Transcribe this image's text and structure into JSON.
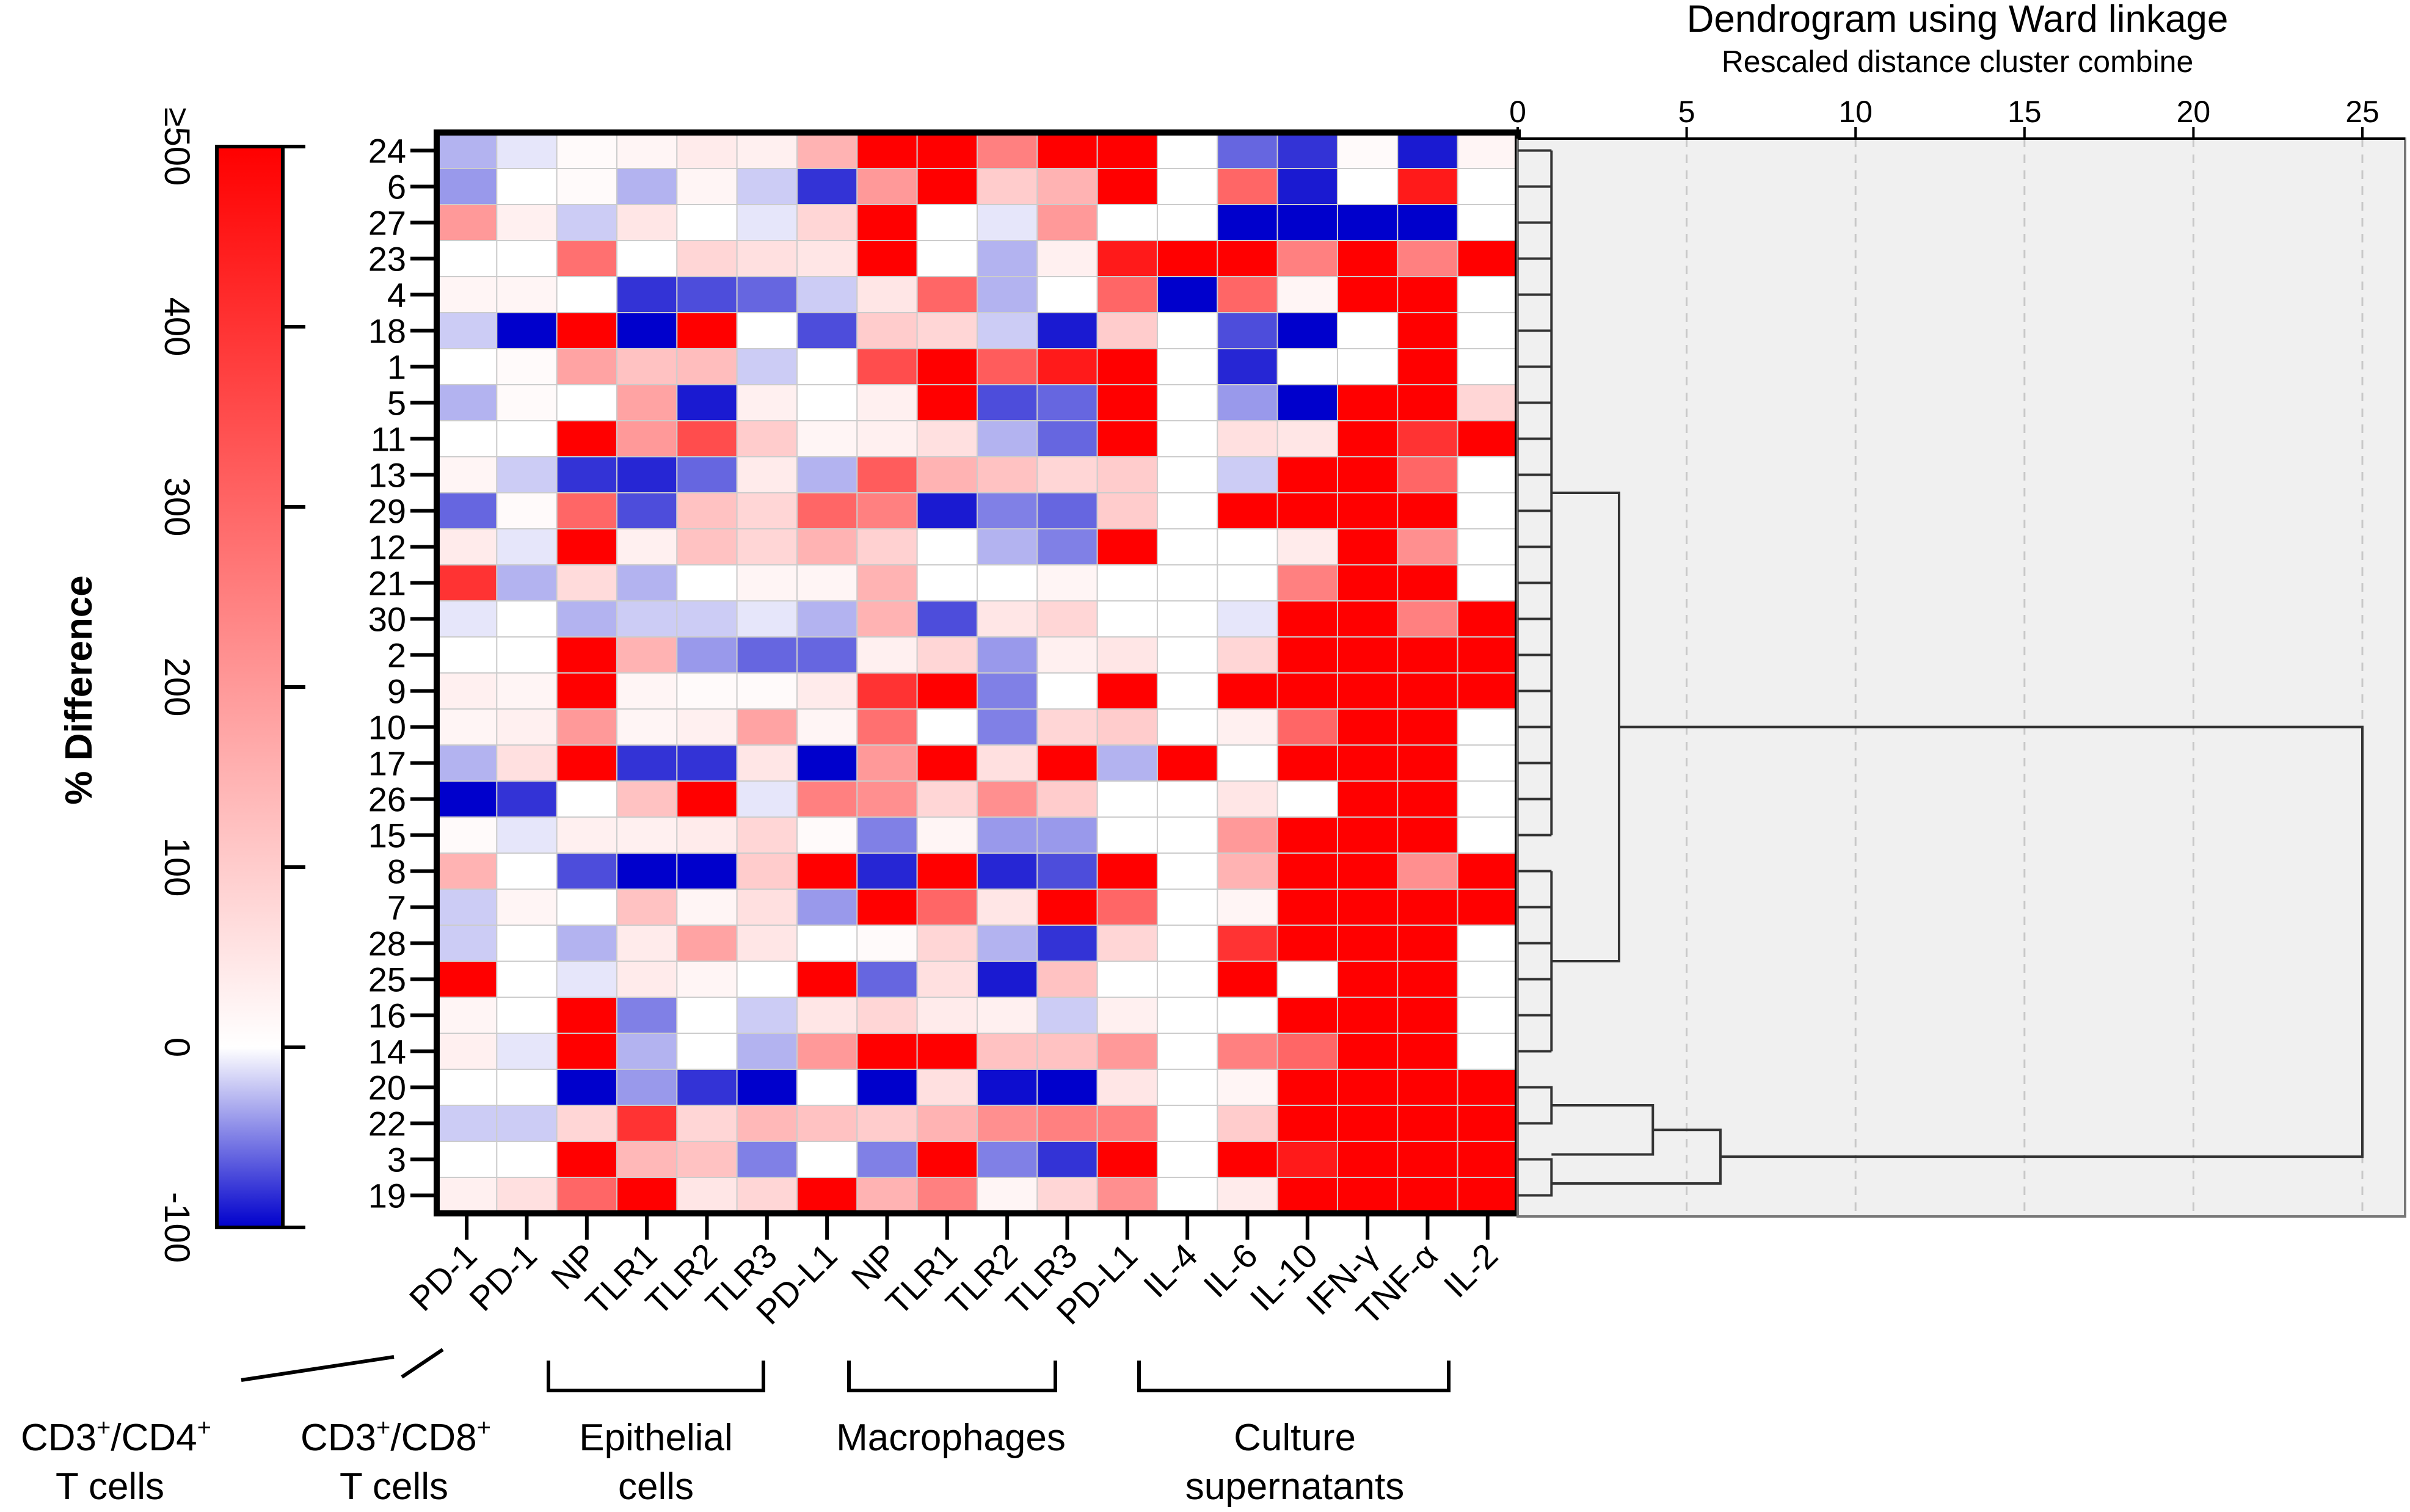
{
  "chart_data": [
    {
      "type": "heatmap",
      "title": "",
      "rows": [
        "24",
        "6",
        "27",
        "23",
        "4",
        "18",
        "1",
        "5",
        "11",
        "13",
        "29",
        "12",
        "21",
        "30",
        "2",
        "9",
        "10",
        "17",
        "26",
        "15",
        "8",
        "7",
        "28",
        "25",
        "16",
        "14",
        "20",
        "22",
        "3",
        "19"
      ],
      "columns": [
        "PD-1",
        "PD-1",
        "NP",
        "TLR1",
        "TLR2",
        "TLR3",
        "PD-L1",
        "NP",
        "TLR1",
        "TLR2",
        "TLR3",
        "PD-L1",
        "IL-4",
        "IL-6",
        "IL-10",
        "IFN-γ",
        "TNF-α",
        "IL-2"
      ],
      "groups": [
        {
          "label_line1": "CD3⁺/CD4⁺",
          "label_line2": "T cells",
          "columns": [
            0
          ]
        },
        {
          "label_line1": "CD3⁺/CD8⁺",
          "label_line2": "T cells",
          "columns": [
            1
          ]
        },
        {
          "label_line1": "Epithelial",
          "label_line2": "cells",
          "columns": [
            2,
            3,
            4,
            5
          ]
        },
        {
          "label_line1": "Macrophages",
          "label_line2": "",
          "columns": [
            6,
            7,
            8,
            9,
            10
          ]
        },
        {
          "label_line1": "Culture",
          "label_line2": "supernatants",
          "columns": [
            11,
            12,
            13,
            14,
            15,
            16,
            17
          ]
        }
      ],
      "values": [
        [
          -30,
          -10,
          10,
          20,
          40,
          30,
          150,
          500,
          500,
          250,
          500,
          500,
          0,
          -60,
          -80,
          10,
          -90,
          20
        ],
        [
          -40,
          0,
          10,
          -30,
          20,
          -20,
          -80,
          200,
          500,
          100,
          150,
          500,
          0,
          300,
          -90,
          0,
          450,
          0
        ],
        [
          200,
          30,
          -20,
          50,
          0,
          -10,
          80,
          500,
          0,
          -10,
          200,
          0,
          0,
          -100,
          -100,
          -100,
          -100,
          0
        ],
        [
          0,
          0,
          280,
          0,
          80,
          60,
          50,
          500,
          0,
          -30,
          30,
          450,
          500,
          500,
          250,
          500,
          250,
          500
        ],
        [
          20,
          20,
          0,
          -80,
          -70,
          -60,
          -20,
          50,
          300,
          -30,
          0,
          300,
          -100,
          300,
          20,
          500,
          500,
          0
        ],
        [
          -20,
          -100,
          500,
          -100,
          500,
          0,
          -70,
          100,
          80,
          -20,
          -90,
          100,
          0,
          -70,
          -100,
          0,
          500,
          0
        ],
        [
          0,
          10,
          180,
          120,
          130,
          -20,
          0,
          350,
          500,
          320,
          450,
          500,
          0,
          -85,
          0,
          0,
          500,
          0
        ],
        [
          -30,
          10,
          0,
          180,
          -90,
          30,
          0,
          30,
          500,
          -70,
          -60,
          500,
          0,
          -40,
          -100,
          500,
          500,
          80
        ],
        [
          0,
          0,
          500,
          200,
          350,
          100,
          20,
          30,
          60,
          -30,
          -60,
          500,
          0,
          60,
          50,
          500,
          400,
          500
        ],
        [
          20,
          -20,
          -80,
          -85,
          -60,
          40,
          -30,
          320,
          150,
          120,
          80,
          100,
          0,
          -20,
          500,
          500,
          300,
          0
        ],
        [
          -60,
          10,
          300,
          -70,
          120,
          80,
          300,
          250,
          -90,
          -50,
          -60,
          100,
          0,
          500,
          500,
          500,
          500,
          0
        ],
        [
          40,
          -10,
          500,
          30,
          120,
          80,
          150,
          90,
          0,
          -30,
          -50,
          500,
          0,
          0,
          40,
          500,
          220,
          0
        ],
        [
          400,
          -30,
          70,
          -30,
          0,
          20,
          20,
          150,
          0,
          0,
          20,
          0,
          0,
          0,
          250,
          500,
          500,
          0
        ],
        [
          -10,
          0,
          -30,
          -20,
          -20,
          -10,
          -30,
          150,
          -70,
          50,
          80,
          0,
          0,
          -10,
          500,
          500,
          250,
          500
        ],
        [
          0,
          0,
          500,
          150,
          -40,
          -60,
          -60,
          30,
          80,
          -40,
          30,
          50,
          0,
          80,
          500,
          500,
          500,
          500
        ],
        [
          30,
          20,
          500,
          20,
          10,
          10,
          40,
          400,
          500,
          -50,
          0,
          500,
          0,
          500,
          500,
          500,
          500,
          500
        ],
        [
          20,
          30,
          200,
          20,
          30,
          180,
          20,
          280,
          0,
          -50,
          80,
          100,
          0,
          30,
          300,
          500,
          500,
          0
        ],
        [
          -30,
          60,
          500,
          -80,
          -80,
          50,
          -100,
          200,
          500,
          60,
          500,
          -30,
          500,
          0,
          500,
          500,
          500,
          0
        ],
        [
          -100,
          -80,
          0,
          120,
          500,
          -10,
          250,
          220,
          80,
          220,
          100,
          0,
          0,
          50,
          0,
          500,
          500,
          0
        ],
        [
          10,
          -10,
          30,
          30,
          40,
          80,
          10,
          -50,
          20,
          -40,
          -40,
          0,
          0,
          200,
          500,
          500,
          500,
          0
        ],
        [
          150,
          0,
          -70,
          -100,
          -100,
          100,
          500,
          -85,
          500,
          -85,
          -70,
          500,
          0,
          150,
          500,
          500,
          220,
          500
        ],
        [
          -20,
          20,
          0,
          120,
          20,
          60,
          -40,
          500,
          300,
          50,
          500,
          300,
          0,
          20,
          500,
          500,
          500,
          500
        ],
        [
          -20,
          0,
          -30,
          40,
          180,
          50,
          0,
          10,
          80,
          -30,
          -80,
          80,
          0,
          400,
          500,
          500,
          500,
          0
        ],
        [
          500,
          0,
          -10,
          40,
          20,
          0,
          500,
          -60,
          60,
          -90,
          120,
          0,
          0,
          500,
          0,
          500,
          500,
          0
        ],
        [
          20,
          0,
          500,
          -50,
          0,
          -20,
          50,
          80,
          40,
          30,
          -20,
          30,
          0,
          0,
          500,
          500,
          500,
          0
        ],
        [
          30,
          -10,
          500,
          -30,
          0,
          -30,
          200,
          500,
          500,
          120,
          120,
          200,
          0,
          250,
          300,
          500,
          500,
          0
        ],
        [
          0,
          0,
          -100,
          -40,
          -80,
          -100,
          0,
          -100,
          60,
          -95,
          -100,
          50,
          0,
          20,
          500,
          500,
          500,
          500
        ],
        [
          -20,
          -20,
          80,
          400,
          80,
          140,
          120,
          100,
          150,
          220,
          250,
          250,
          0,
          100,
          500,
          500,
          500,
          500
        ],
        [
          0,
          0,
          500,
          140,
          120,
          -50,
          0,
          -50,
          500,
          -50,
          -80,
          500,
          0,
          500,
          450,
          500,
          500,
          500
        ],
        [
          30,
          60,
          300,
          500,
          50,
          80,
          500,
          150,
          250,
          20,
          80,
          220,
          0,
          40,
          500,
          500,
          500,
          500
        ]
      ],
      "colorbar": {
        "label": "% Difference",
        "min": -100,
        "max": 500,
        "ticks": [
          -100,
          0,
          100,
          200,
          300,
          400,
          500
        ],
        "tick_labels": [
          "-100",
          "0",
          "100",
          "200",
          "300",
          "400",
          "≥500"
        ],
        "colors": {
          "low": "#0000cc",
          "mid": "#ffffff",
          "high": "#ff0000"
        }
      }
    },
    {
      "type": "dendrogram",
      "title": "Dendrogram using Ward linkage",
      "subtitle": "Rescaled distance cluster combine",
      "axis_range": [
        0,
        25
      ],
      "ticks": [
        0,
        5,
        10,
        15,
        20,
        25
      ],
      "tick_labels": [
        "0",
        "5",
        "10",
        "15",
        "20",
        "25"
      ],
      "clusters": [
        {
          "leaves": [
            0,
            19
          ],
          "height": 1
        },
        {
          "leaves": [
            20,
            25
          ],
          "height": 1
        },
        {
          "leaves": [
            0,
            25
          ],
          "height": 3
        },
        {
          "leaves": [
            26,
            27
          ],
          "height": 1
        },
        {
          "leaves": [
            26,
            27
          ],
          "height": 4
        },
        {
          "leaves": [
            28,
            29
          ],
          "height": 1
        },
        {
          "leaves": [
            26,
            29
          ],
          "height": 6
        },
        {
          "leaves": [
            0,
            29
          ],
          "height": 25
        }
      ]
    }
  ]
}
